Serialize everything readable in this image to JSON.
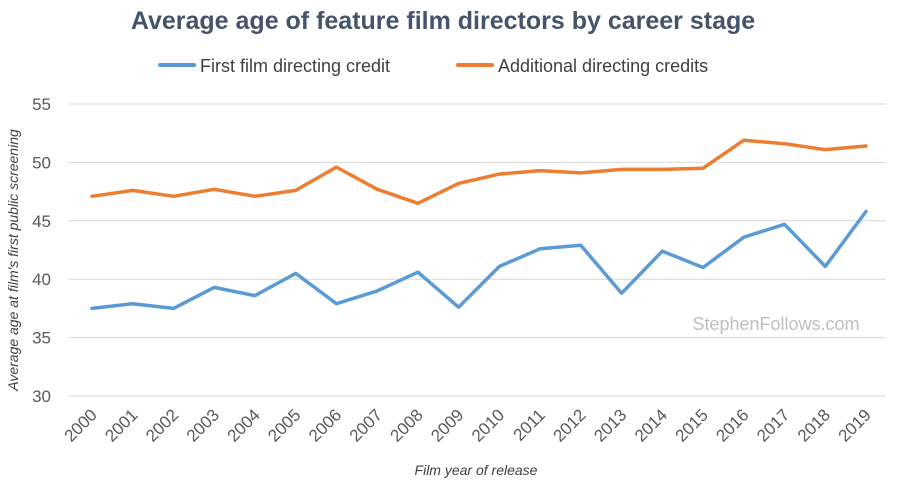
{
  "chart_data": {
    "type": "line",
    "title": "Average age of feature film directors by career stage",
    "xlabel": "Film year of release",
    "ylabel": "Average age at film's first public screening",
    "ylim": [
      30,
      55
    ],
    "yticks": [
      30,
      35,
      40,
      45,
      50,
      55
    ],
    "grid": true,
    "legend_position": "top",
    "watermark": "StephenFollows.com",
    "categories": [
      "2000",
      "2001",
      "2002",
      "2003",
      "2004",
      "2005",
      "2006",
      "2007",
      "2008",
      "2009",
      "2010",
      "2011",
      "2012",
      "2013",
      "2014",
      "2015",
      "2016",
      "2017",
      "2018",
      "2019"
    ],
    "series": [
      {
        "name": "First film directing credit",
        "color": "#5b9bd5",
        "values": [
          37.5,
          37.9,
          37.5,
          39.3,
          38.6,
          40.5,
          37.9,
          39.0,
          40.6,
          37.6,
          41.1,
          42.6,
          42.9,
          38.8,
          42.4,
          41.0,
          43.6,
          44.7,
          41.1,
          45.8
        ]
      },
      {
        "name": "Additional directing credits",
        "color": "#ed7d31",
        "values": [
          47.1,
          47.6,
          47.1,
          47.7,
          47.1,
          47.6,
          49.6,
          47.7,
          46.5,
          48.2,
          49.0,
          49.3,
          49.1,
          49.4,
          49.4,
          49.5,
          51.9,
          51.6,
          51.1,
          51.4
        ]
      }
    ]
  }
}
